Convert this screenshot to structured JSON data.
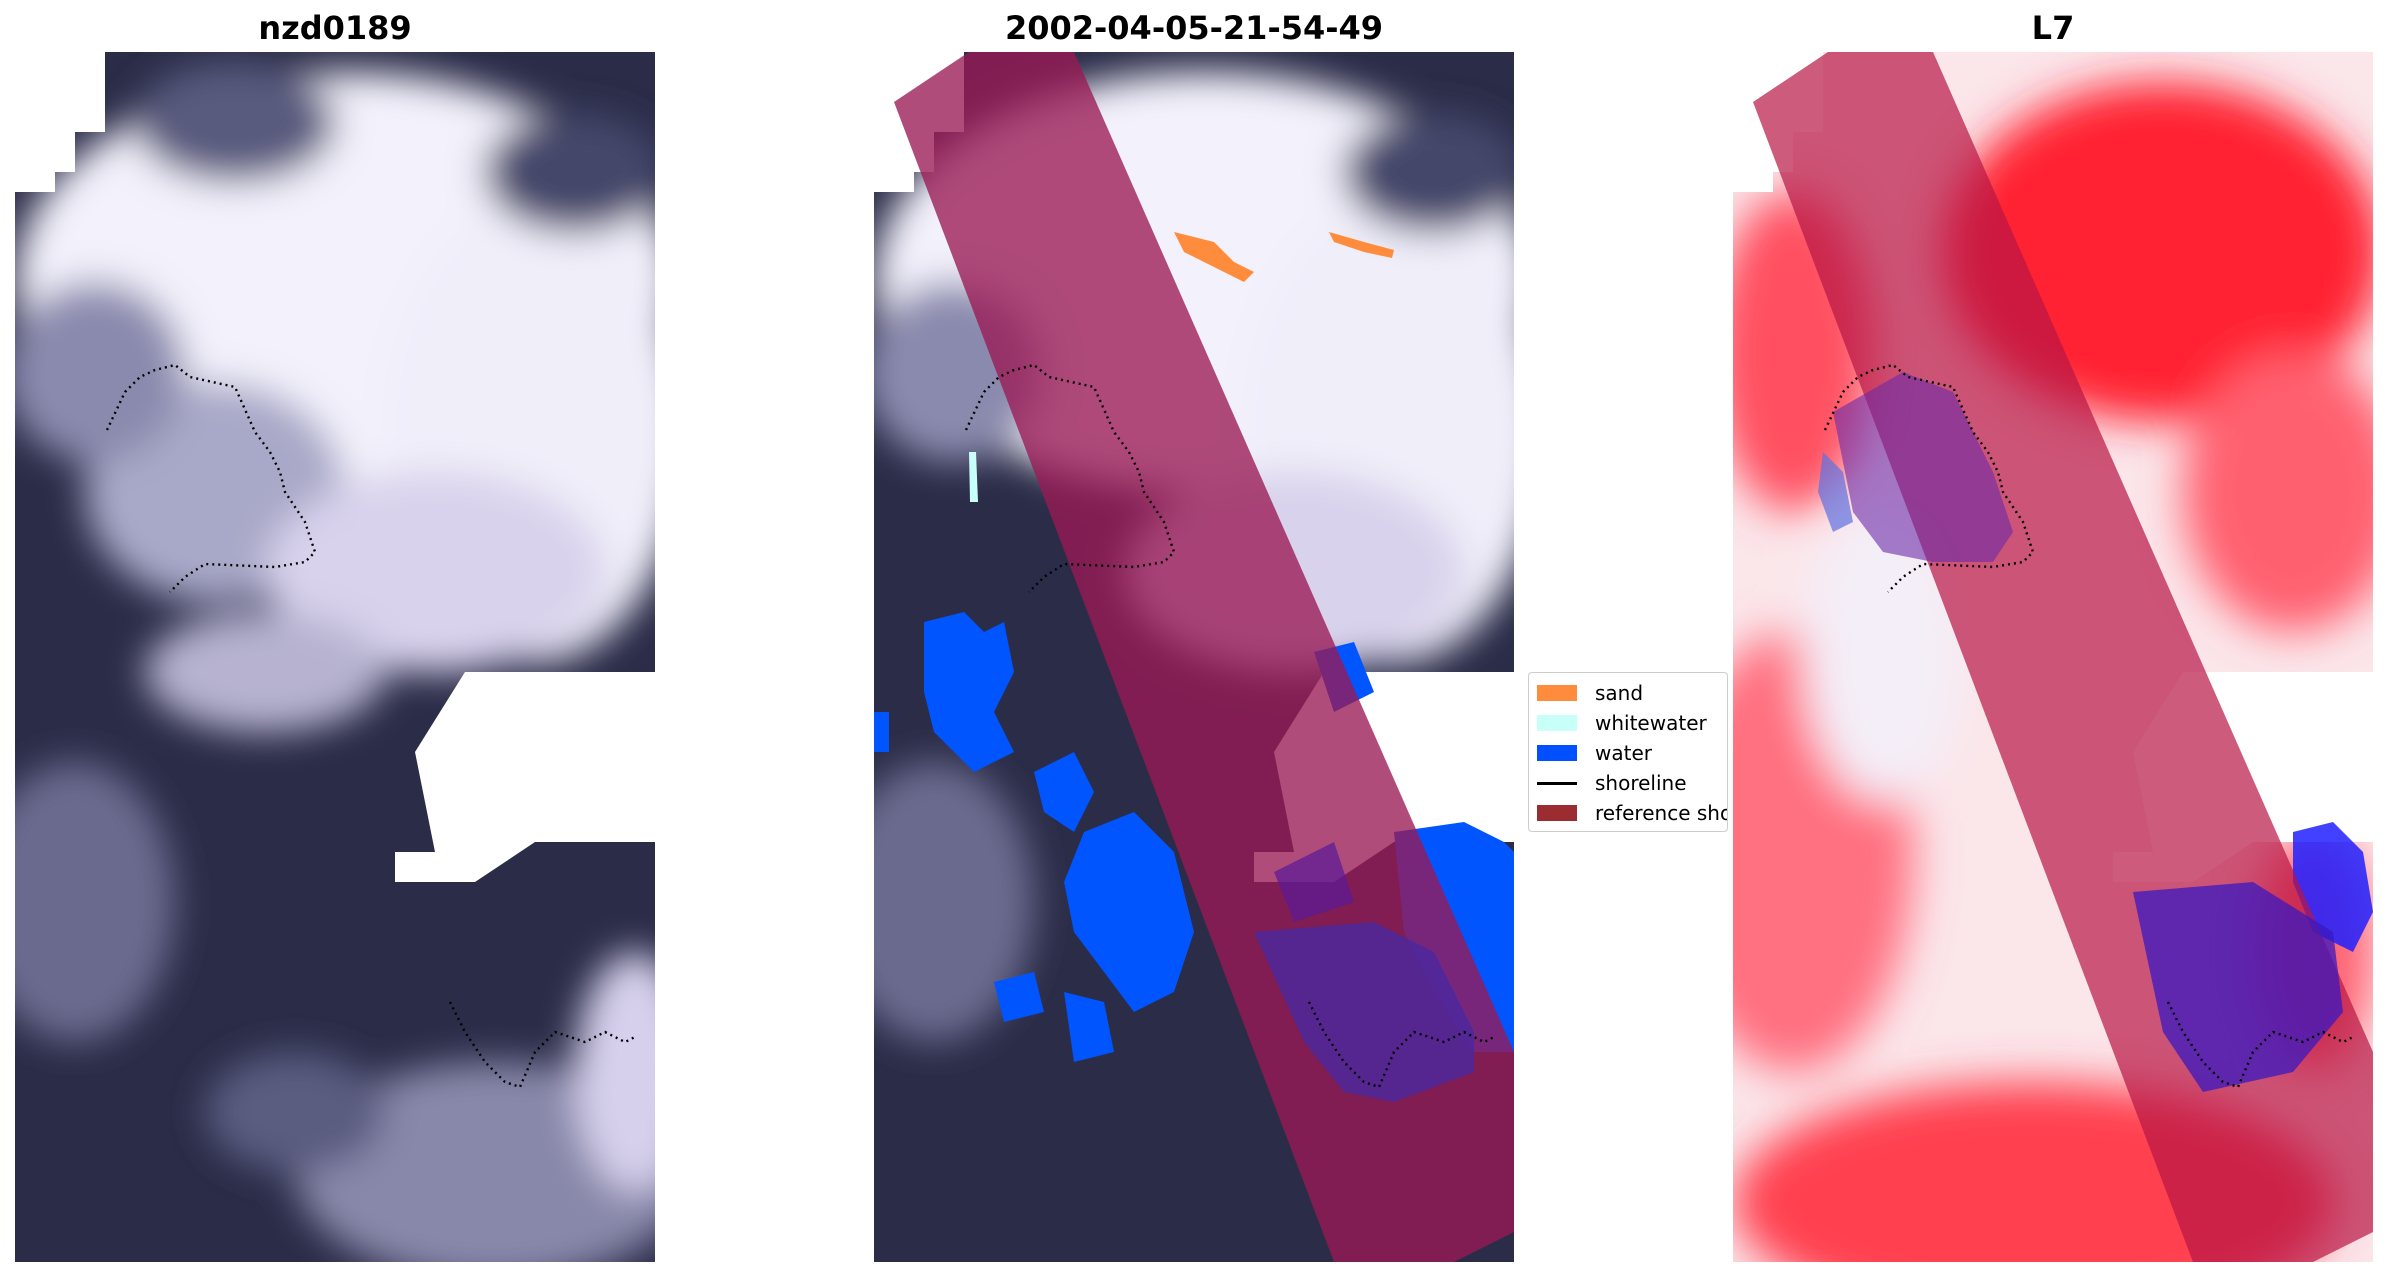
{
  "panels": [
    {
      "title": "nzd0189"
    },
    {
      "title": "2002-04-05-21-54-49"
    },
    {
      "title": "L7"
    }
  ],
  "legend": {
    "items": [
      {
        "label": "sand",
        "color": "#ff8c3c",
        "kind": "swatch"
      },
      {
        "label": "whitewater",
        "color": "#c8fff8",
        "kind": "swatch"
      },
      {
        "label": "water",
        "color": "#0050ff",
        "kind": "swatch"
      },
      {
        "label": "shoreline",
        "color": "#000000",
        "kind": "line"
      },
      {
        "label": "reference shoreline",
        "color": "#9a2c32",
        "kind": "swatch"
      }
    ]
  },
  "colors": {
    "cloud": "#f2f0fb",
    "dark_sea": "#232640",
    "reference_band": "#9a1a55",
    "index_red": "#ff2030",
    "index_blue": "#3a2fd0"
  }
}
